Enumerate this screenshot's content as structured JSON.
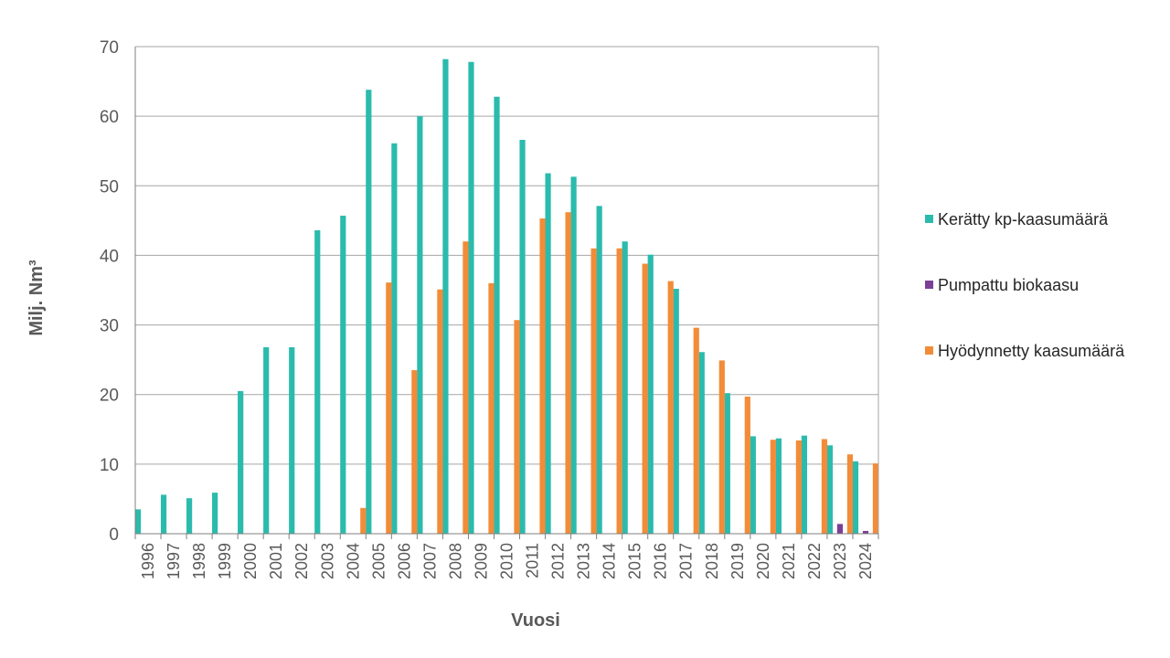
{
  "chart_data": {
    "type": "bar",
    "xlabel": "Vuosi",
    "ylabel": "Milj. Nm³",
    "ylim": [
      0,
      70
    ],
    "yticks": [
      0,
      10,
      20,
      30,
      40,
      50,
      60,
      70
    ],
    "grid": true,
    "legend_position": "right",
    "categories": [
      "1996",
      "1997",
      "1998",
      "1999",
      "2000",
      "2001",
      "2002",
      "2003",
      "2004",
      "2005",
      "2006",
      "2007",
      "2008",
      "2009",
      "2010",
      "2011",
      "2012",
      "2013",
      "2014",
      "2015",
      "2016",
      "2017",
      "2018",
      "2019",
      "2020",
      "2021",
      "2022",
      "2023",
      "2024"
    ],
    "series": [
      {
        "name": "Kerätty kp-kaasumäärä",
        "color": "#2bbbad",
        "values": [
          3.5,
          5.6,
          5.1,
          5.9,
          20.5,
          26.8,
          26.8,
          43.6,
          45.7,
          63.8,
          56.1,
          60.0,
          68.2,
          67.8,
          62.8,
          56.6,
          51.8,
          51.3,
          47.1,
          42.0,
          40.1,
          35.2,
          26.1,
          20.2,
          14.0,
          13.7,
          14.1,
          12.7,
          10.4
        ]
      },
      {
        "name": "Pumpattu biokaasu",
        "color": "#7b3f98",
        "values": [
          0,
          0,
          0,
          0,
          0,
          0,
          0,
          0,
          0,
          0,
          0,
          0,
          0,
          0,
          0,
          0,
          0,
          0,
          0,
          0,
          0,
          0,
          0,
          0,
          0,
          0,
          0,
          1.4,
          0.4
        ]
      },
      {
        "name": "Hyödynnetty kaasumäärä",
        "color": "#f28c38",
        "values": [
          0,
          0,
          0,
          0,
          0,
          0,
          0,
          0,
          3.7,
          36.1,
          23.5,
          35.1,
          42.0,
          36.0,
          30.7,
          45.3,
          46.2,
          41.0,
          41.0,
          38.8,
          36.3,
          29.6,
          24.9,
          19.7,
          13.5,
          13.4,
          13.6,
          11.4,
          10.1
        ]
      }
    ]
  }
}
